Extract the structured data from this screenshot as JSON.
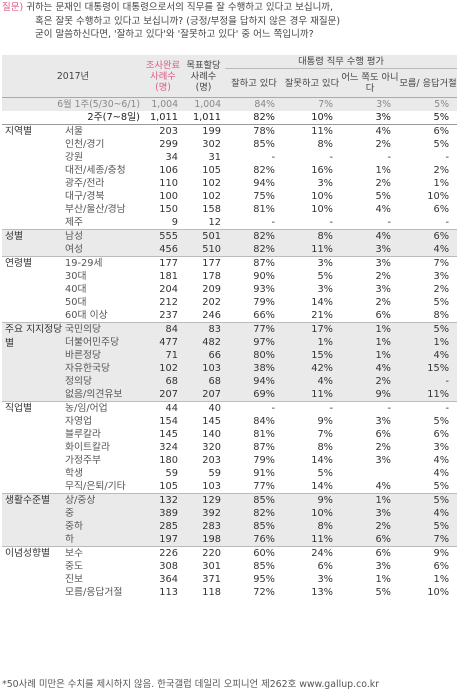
{
  "question": {
    "lines": [
      "질문) 귀하는 문재인 대통령이 대통령으로서의 직무를 잘 수행하고 있다고 보십니까,",
      "혹은 잘못 수행하고 있다고 보십니까? (긍정/부정을 답하지 않은 경우 재질문)",
      "굳이 말씀하신다면, '잘하고 있다'와 '잘못하고 있다' 중 어느 쪽입니까?"
    ]
  },
  "table": {
    "year_label": "2017년",
    "header": {
      "surveyed": "조사완료 사례수 (명)",
      "weighted": "목표할당 사례수 (명)",
      "eval_title": "대통령 직무 수행 평가",
      "good": "잘하고 있다",
      "bad": "잘못하고 있다",
      "neutral": "어느 쪽도 아니다",
      "dk": "모름/ 응답거절"
    },
    "prev_row": {
      "label": "6월 1주(5/30~6/1)",
      "n1": "1,004",
      "n2": "1,004",
      "good": "84%",
      "bad": "7%",
      "neutral": "3%",
      "dk": "5%"
    },
    "cur_row": {
      "label": "2주(7~8일)",
      "n1": "1,011",
      "n2": "1,011",
      "good": "82%",
      "bad": "10%",
      "neutral": "3%",
      "dk": "5%"
    },
    "groups": [
      {
        "name": "지역별",
        "rows": [
          {
            "label": "서울",
            "n1": "203",
            "n2": "199",
            "good": "78%",
            "bad": "11%",
            "neutral": "4%",
            "dk": "6%"
          },
          {
            "label": "인천/경기",
            "n1": "299",
            "n2": "302",
            "good": "85%",
            "bad": "8%",
            "neutral": "2%",
            "dk": "5%"
          },
          {
            "label": "강원",
            "n1": "34",
            "n2": "31",
            "good": "-",
            "bad": "-",
            "neutral": "-",
            "dk": "-"
          },
          {
            "label": "대전/세종/충청",
            "n1": "106",
            "n2": "105",
            "good": "82%",
            "bad": "16%",
            "neutral": "1%",
            "dk": "2%"
          },
          {
            "label": "광주/전라",
            "n1": "110",
            "n2": "102",
            "good": "94%",
            "bad": "3%",
            "neutral": "2%",
            "dk": "1%"
          },
          {
            "label": "대구/경북",
            "n1": "100",
            "n2": "102",
            "good": "75%",
            "bad": "10%",
            "neutral": "5%",
            "dk": "10%"
          },
          {
            "label": "부산/울산/경남",
            "n1": "150",
            "n2": "158",
            "good": "81%",
            "bad": "10%",
            "neutral": "4%",
            "dk": "6%"
          },
          {
            "label": "제주",
            "n1": "9",
            "n2": "12",
            "good": "-",
            "bad": "-",
            "neutral": "-",
            "dk": "-"
          }
        ]
      },
      {
        "name": "성별",
        "rows": [
          {
            "label": "남성",
            "n1": "555",
            "n2": "501",
            "good": "82%",
            "bad": "8%",
            "neutral": "4%",
            "dk": "6%"
          },
          {
            "label": "여성",
            "n1": "456",
            "n2": "510",
            "good": "82%",
            "bad": "11%",
            "neutral": "3%",
            "dk": "4%"
          }
        ]
      },
      {
        "name": "연령별",
        "rows": [
          {
            "label": "19-29세",
            "n1": "177",
            "n2": "177",
            "good": "87%",
            "bad": "3%",
            "neutral": "3%",
            "dk": "7%"
          },
          {
            "label": "30대",
            "n1": "181",
            "n2": "178",
            "good": "90%",
            "bad": "5%",
            "neutral": "2%",
            "dk": "3%"
          },
          {
            "label": "40대",
            "n1": "204",
            "n2": "209",
            "good": "93%",
            "bad": "3%",
            "neutral": "3%",
            "dk": "2%"
          },
          {
            "label": "50대",
            "n1": "212",
            "n2": "202",
            "good": "79%",
            "bad": "14%",
            "neutral": "2%",
            "dk": "5%"
          },
          {
            "label": "60대 이상",
            "n1": "237",
            "n2": "246",
            "good": "66%",
            "bad": "21%",
            "neutral": "6%",
            "dk": "8%"
          }
        ]
      },
      {
        "name": "주요 지지정당별",
        "rows": [
          {
            "label": "국민의당",
            "n1": "84",
            "n2": "83",
            "good": "77%",
            "bad": "17%",
            "neutral": "1%",
            "dk": "5%"
          },
          {
            "label": "더불어민주당",
            "n1": "477",
            "n2": "482",
            "good": "97%",
            "bad": "1%",
            "neutral": "1%",
            "dk": "1%"
          },
          {
            "label": "바른정당",
            "n1": "71",
            "n2": "66",
            "good": "80%",
            "bad": "15%",
            "neutral": "1%",
            "dk": "4%"
          },
          {
            "label": "자유한국당",
            "n1": "102",
            "n2": "103",
            "good": "38%",
            "bad": "42%",
            "neutral": "4%",
            "dk": "15%"
          },
          {
            "label": "정의당",
            "n1": "68",
            "n2": "68",
            "good": "94%",
            "bad": "4%",
            "neutral": "2%",
            "dk": "-"
          },
          {
            "label": "없음/의견유보",
            "n1": "207",
            "n2": "207",
            "good": "69%",
            "bad": "11%",
            "neutral": "9%",
            "dk": "11%"
          }
        ]
      },
      {
        "name": "직업별",
        "rows": [
          {
            "label": "농/임/어업",
            "n1": "44",
            "n2": "40",
            "good": "-",
            "bad": "-",
            "neutral": "-",
            "dk": "-"
          },
          {
            "label": "자영업",
            "n1": "154",
            "n2": "145",
            "good": "84%",
            "bad": "9%",
            "neutral": "3%",
            "dk": "5%"
          },
          {
            "label": "블루칼라",
            "n1": "145",
            "n2": "140",
            "good": "81%",
            "bad": "7%",
            "neutral": "6%",
            "dk": "6%"
          },
          {
            "label": "화이트칼라",
            "n1": "324",
            "n2": "320",
            "good": "87%",
            "bad": "8%",
            "neutral": "2%",
            "dk": "3%"
          },
          {
            "label": "가정주부",
            "n1": "180",
            "n2": "203",
            "good": "79%",
            "bad": "14%",
            "neutral": "3%",
            "dk": "4%"
          },
          {
            "label": "학생",
            "n1": "59",
            "n2": "59",
            "good": "91%",
            "bad": "5%",
            "neutral": "",
            "dk": "4%"
          },
          {
            "label": "무직/은퇴/기타",
            "n1": "105",
            "n2": "103",
            "good": "77%",
            "bad": "14%",
            "neutral": "4%",
            "dk": "5%"
          }
        ]
      },
      {
        "name": "생활수준별",
        "rows": [
          {
            "label": "상/중상",
            "n1": "132",
            "n2": "129",
            "good": "85%",
            "bad": "9%",
            "neutral": "1%",
            "dk": "5%"
          },
          {
            "label": "중",
            "n1": "389",
            "n2": "392",
            "good": "82%",
            "bad": "10%",
            "neutral": "3%",
            "dk": "4%"
          },
          {
            "label": "중하",
            "n1": "285",
            "n2": "283",
            "good": "85%",
            "bad": "8%",
            "neutral": "2%",
            "dk": "5%"
          },
          {
            "label": "하",
            "n1": "197",
            "n2": "198",
            "good": "76%",
            "bad": "11%",
            "neutral": "6%",
            "dk": "7%"
          }
        ]
      },
      {
        "name": "이념성향별",
        "rows": [
          {
            "label": "보수",
            "n1": "226",
            "n2": "220",
            "good": "60%",
            "bad": "24%",
            "neutral": "6%",
            "dk": "9%"
          },
          {
            "label": "중도",
            "n1": "308",
            "n2": "301",
            "good": "85%",
            "bad": "6%",
            "neutral": "3%",
            "dk": "6%"
          },
          {
            "label": "진보",
            "n1": "364",
            "n2": "371",
            "good": "95%",
            "bad": "3%",
            "neutral": "1%",
            "dk": "1%"
          },
          {
            "label": "모름/응답거절",
            "n1": "113",
            "n2": "118",
            "good": "72%",
            "bad": "13%",
            "neutral": "5%",
            "dk": "10%"
          }
        ]
      }
    ]
  },
  "footnote": "*50사례 미만은 수치를 제시하지 않음. 한국갤럽 데일리 오피니언 제262호 www.gallup.co.kr",
  "colors": {
    "accent": "#e05a8a",
    "shade": "#eaeaea"
  }
}
